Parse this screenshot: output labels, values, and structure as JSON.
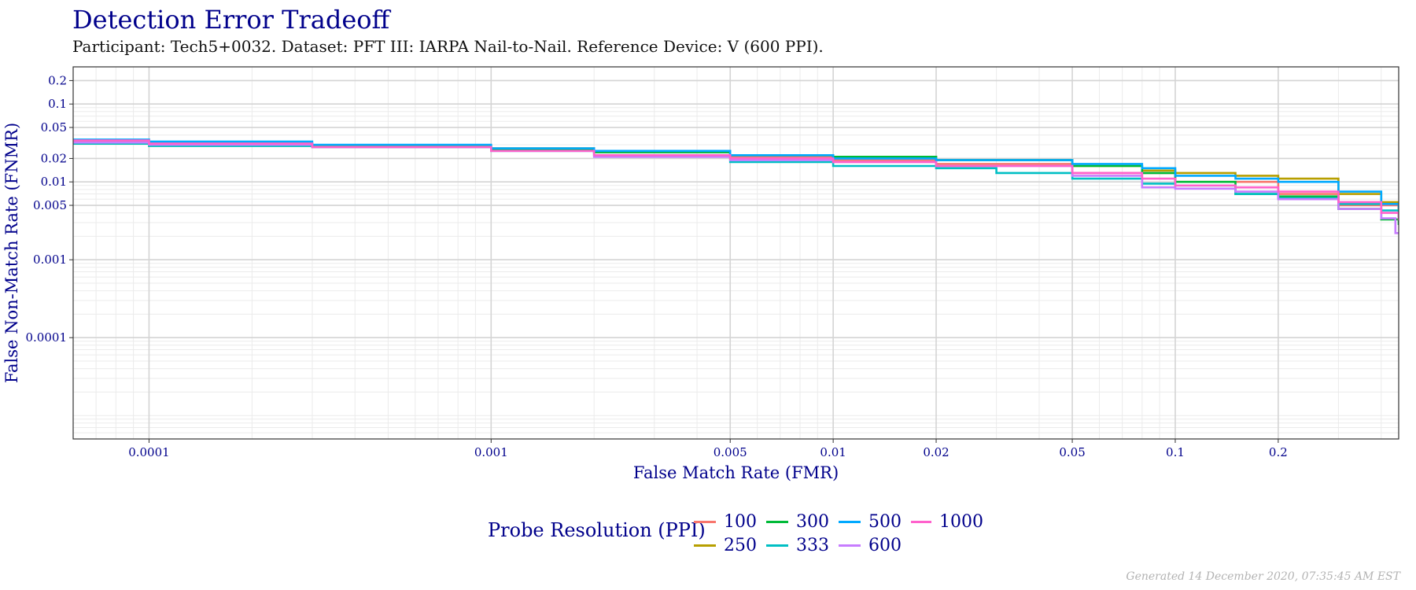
{
  "title": "Detection Error Tradeoff",
  "subtitle": "Participant: Tech5+0032. Dataset: PFT III: IARPA Nail-to-Nail. Reference Device: V (600 PPI).",
  "footer": "Generated 14 December 2020, 07:35:45 AM EST",
  "chart_data": {
    "type": "line",
    "title": "Detection Error Tradeoff",
    "xlabel": "False Match Rate (FMR)",
    "ylabel": "False Non-Match Rate (FNMR)",
    "x_scale": "log",
    "y_scale": "log",
    "xlim": [
      6e-05,
      0.45
    ],
    "ylim": [
      5e-06,
      0.3
    ],
    "x_ticks": [
      0.0001,
      0.001,
      0.005,
      0.01,
      0.02,
      0.05,
      0.1,
      0.2
    ],
    "x_tick_labels": [
      "0.0001",
      "0.001",
      "0.005",
      "0.01",
      "0.02",
      "0.05",
      "0.1",
      "0.2"
    ],
    "y_ticks": [
      0.0001,
      0.001,
      0.005,
      0.01,
      0.02,
      0.05,
      0.1,
      0.2
    ],
    "y_tick_labels": [
      "0.0001",
      "0.001",
      "0.005",
      "0.01",
      "0.02",
      "0.05",
      "0.1",
      "0.2"
    ],
    "grid": true,
    "legend_title": "Probe Resolution (PPI)",
    "legend_position": "bottom",
    "series": [
      {
        "name": "100",
        "color": "#F8766D",
        "points": [
          [
            6e-05,
            0.034
          ],
          [
            0.0001,
            0.031
          ],
          [
            0.0003,
            0.029
          ],
          [
            0.001,
            0.026
          ],
          [
            0.002,
            0.024
          ],
          [
            0.005,
            0.021
          ],
          [
            0.01,
            0.019
          ],
          [
            0.02,
            0.017
          ],
          [
            0.05,
            0.013
          ],
          [
            0.1,
            0.01
          ],
          [
            0.2,
            0.007
          ],
          [
            0.3,
            0.005
          ],
          [
            0.45,
            0.0035
          ]
        ]
      },
      {
        "name": "250",
        "color": "#B79F00",
        "points": [
          [
            6e-05,
            0.033
          ],
          [
            0.0001,
            0.031
          ],
          [
            0.0003,
            0.029
          ],
          [
            0.001,
            0.027
          ],
          [
            0.002,
            0.025
          ],
          [
            0.005,
            0.022
          ],
          [
            0.01,
            0.021
          ],
          [
            0.02,
            0.019
          ],
          [
            0.05,
            0.016
          ],
          [
            0.08,
            0.014
          ],
          [
            0.1,
            0.013
          ],
          [
            0.15,
            0.012
          ],
          [
            0.2,
            0.011
          ],
          [
            0.3,
            0.007
          ],
          [
            0.4,
            0.0055
          ],
          [
            0.45,
            0.004
          ]
        ]
      },
      {
        "name": "300",
        "color": "#00BA38",
        "points": [
          [
            6e-05,
            0.031
          ],
          [
            0.0001,
            0.029
          ],
          [
            0.0003,
            0.028
          ],
          [
            0.001,
            0.026
          ],
          [
            0.002,
            0.024
          ],
          [
            0.005,
            0.022
          ],
          [
            0.01,
            0.021
          ],
          [
            0.02,
            0.019
          ],
          [
            0.05,
            0.016
          ],
          [
            0.08,
            0.013
          ],
          [
            0.1,
            0.01
          ],
          [
            0.15,
            0.007
          ],
          [
            0.2,
            0.0065
          ],
          [
            0.3,
            0.0045
          ],
          [
            0.4,
            0.0033
          ],
          [
            0.45,
            0.0028
          ]
        ]
      },
      {
        "name": "333",
        "color": "#00BFC4",
        "points": [
          [
            6e-05,
            0.031
          ],
          [
            0.0001,
            0.029
          ],
          [
            0.0003,
            0.028
          ],
          [
            0.001,
            0.025
          ],
          [
            0.002,
            0.022
          ],
          [
            0.005,
            0.018
          ],
          [
            0.01,
            0.016
          ],
          [
            0.02,
            0.015
          ],
          [
            0.03,
            0.013
          ],
          [
            0.05,
            0.011
          ],
          [
            0.08,
            0.0095
          ],
          [
            0.1,
            0.009
          ],
          [
            0.15,
            0.007
          ],
          [
            0.2,
            0.0062
          ],
          [
            0.3,
            0.0052
          ],
          [
            0.4,
            0.0043
          ],
          [
            0.45,
            0.0035
          ]
        ]
      },
      {
        "name": "500",
        "color": "#00A9FF",
        "points": [
          [
            6e-05,
            0.035
          ],
          [
            0.0001,
            0.033
          ],
          [
            0.0003,
            0.03
          ],
          [
            0.001,
            0.027
          ],
          [
            0.002,
            0.025
          ],
          [
            0.005,
            0.022
          ],
          [
            0.01,
            0.02
          ],
          [
            0.02,
            0.019
          ],
          [
            0.05,
            0.017
          ],
          [
            0.08,
            0.015
          ],
          [
            0.1,
            0.012
          ],
          [
            0.15,
            0.011
          ],
          [
            0.2,
            0.01
          ],
          [
            0.3,
            0.0075
          ],
          [
            0.4,
            0.0052
          ],
          [
            0.45,
            0.0045
          ]
        ]
      },
      {
        "name": "600",
        "color": "#C77CFF",
        "points": [
          [
            6e-05,
            0.032
          ],
          [
            0.0001,
            0.03
          ],
          [
            0.0003,
            0.028
          ],
          [
            0.001,
            0.025
          ],
          [
            0.002,
            0.021
          ],
          [
            0.005,
            0.019
          ],
          [
            0.01,
            0.018
          ],
          [
            0.02,
            0.016
          ],
          [
            0.05,
            0.012
          ],
          [
            0.08,
            0.0085
          ],
          [
            0.1,
            0.0082
          ],
          [
            0.15,
            0.0075
          ],
          [
            0.2,
            0.006
          ],
          [
            0.3,
            0.0045
          ],
          [
            0.4,
            0.0034
          ],
          [
            0.44,
            0.0022
          ],
          [
            0.45,
            0.0022
          ]
        ]
      },
      {
        "name": "1000",
        "color": "#FF61CC",
        "points": [
          [
            6e-05,
            0.034
          ],
          [
            0.0001,
            0.031
          ],
          [
            0.0003,
            0.028
          ],
          [
            0.001,
            0.025
          ],
          [
            0.002,
            0.022
          ],
          [
            0.005,
            0.02
          ],
          [
            0.01,
            0.018
          ],
          [
            0.02,
            0.016
          ],
          [
            0.05,
            0.013
          ],
          [
            0.08,
            0.011
          ],
          [
            0.1,
            0.009
          ],
          [
            0.15,
            0.0085
          ],
          [
            0.2,
            0.0075
          ],
          [
            0.3,
            0.0055
          ],
          [
            0.4,
            0.004
          ],
          [
            0.45,
            0.0032
          ]
        ]
      }
    ]
  }
}
